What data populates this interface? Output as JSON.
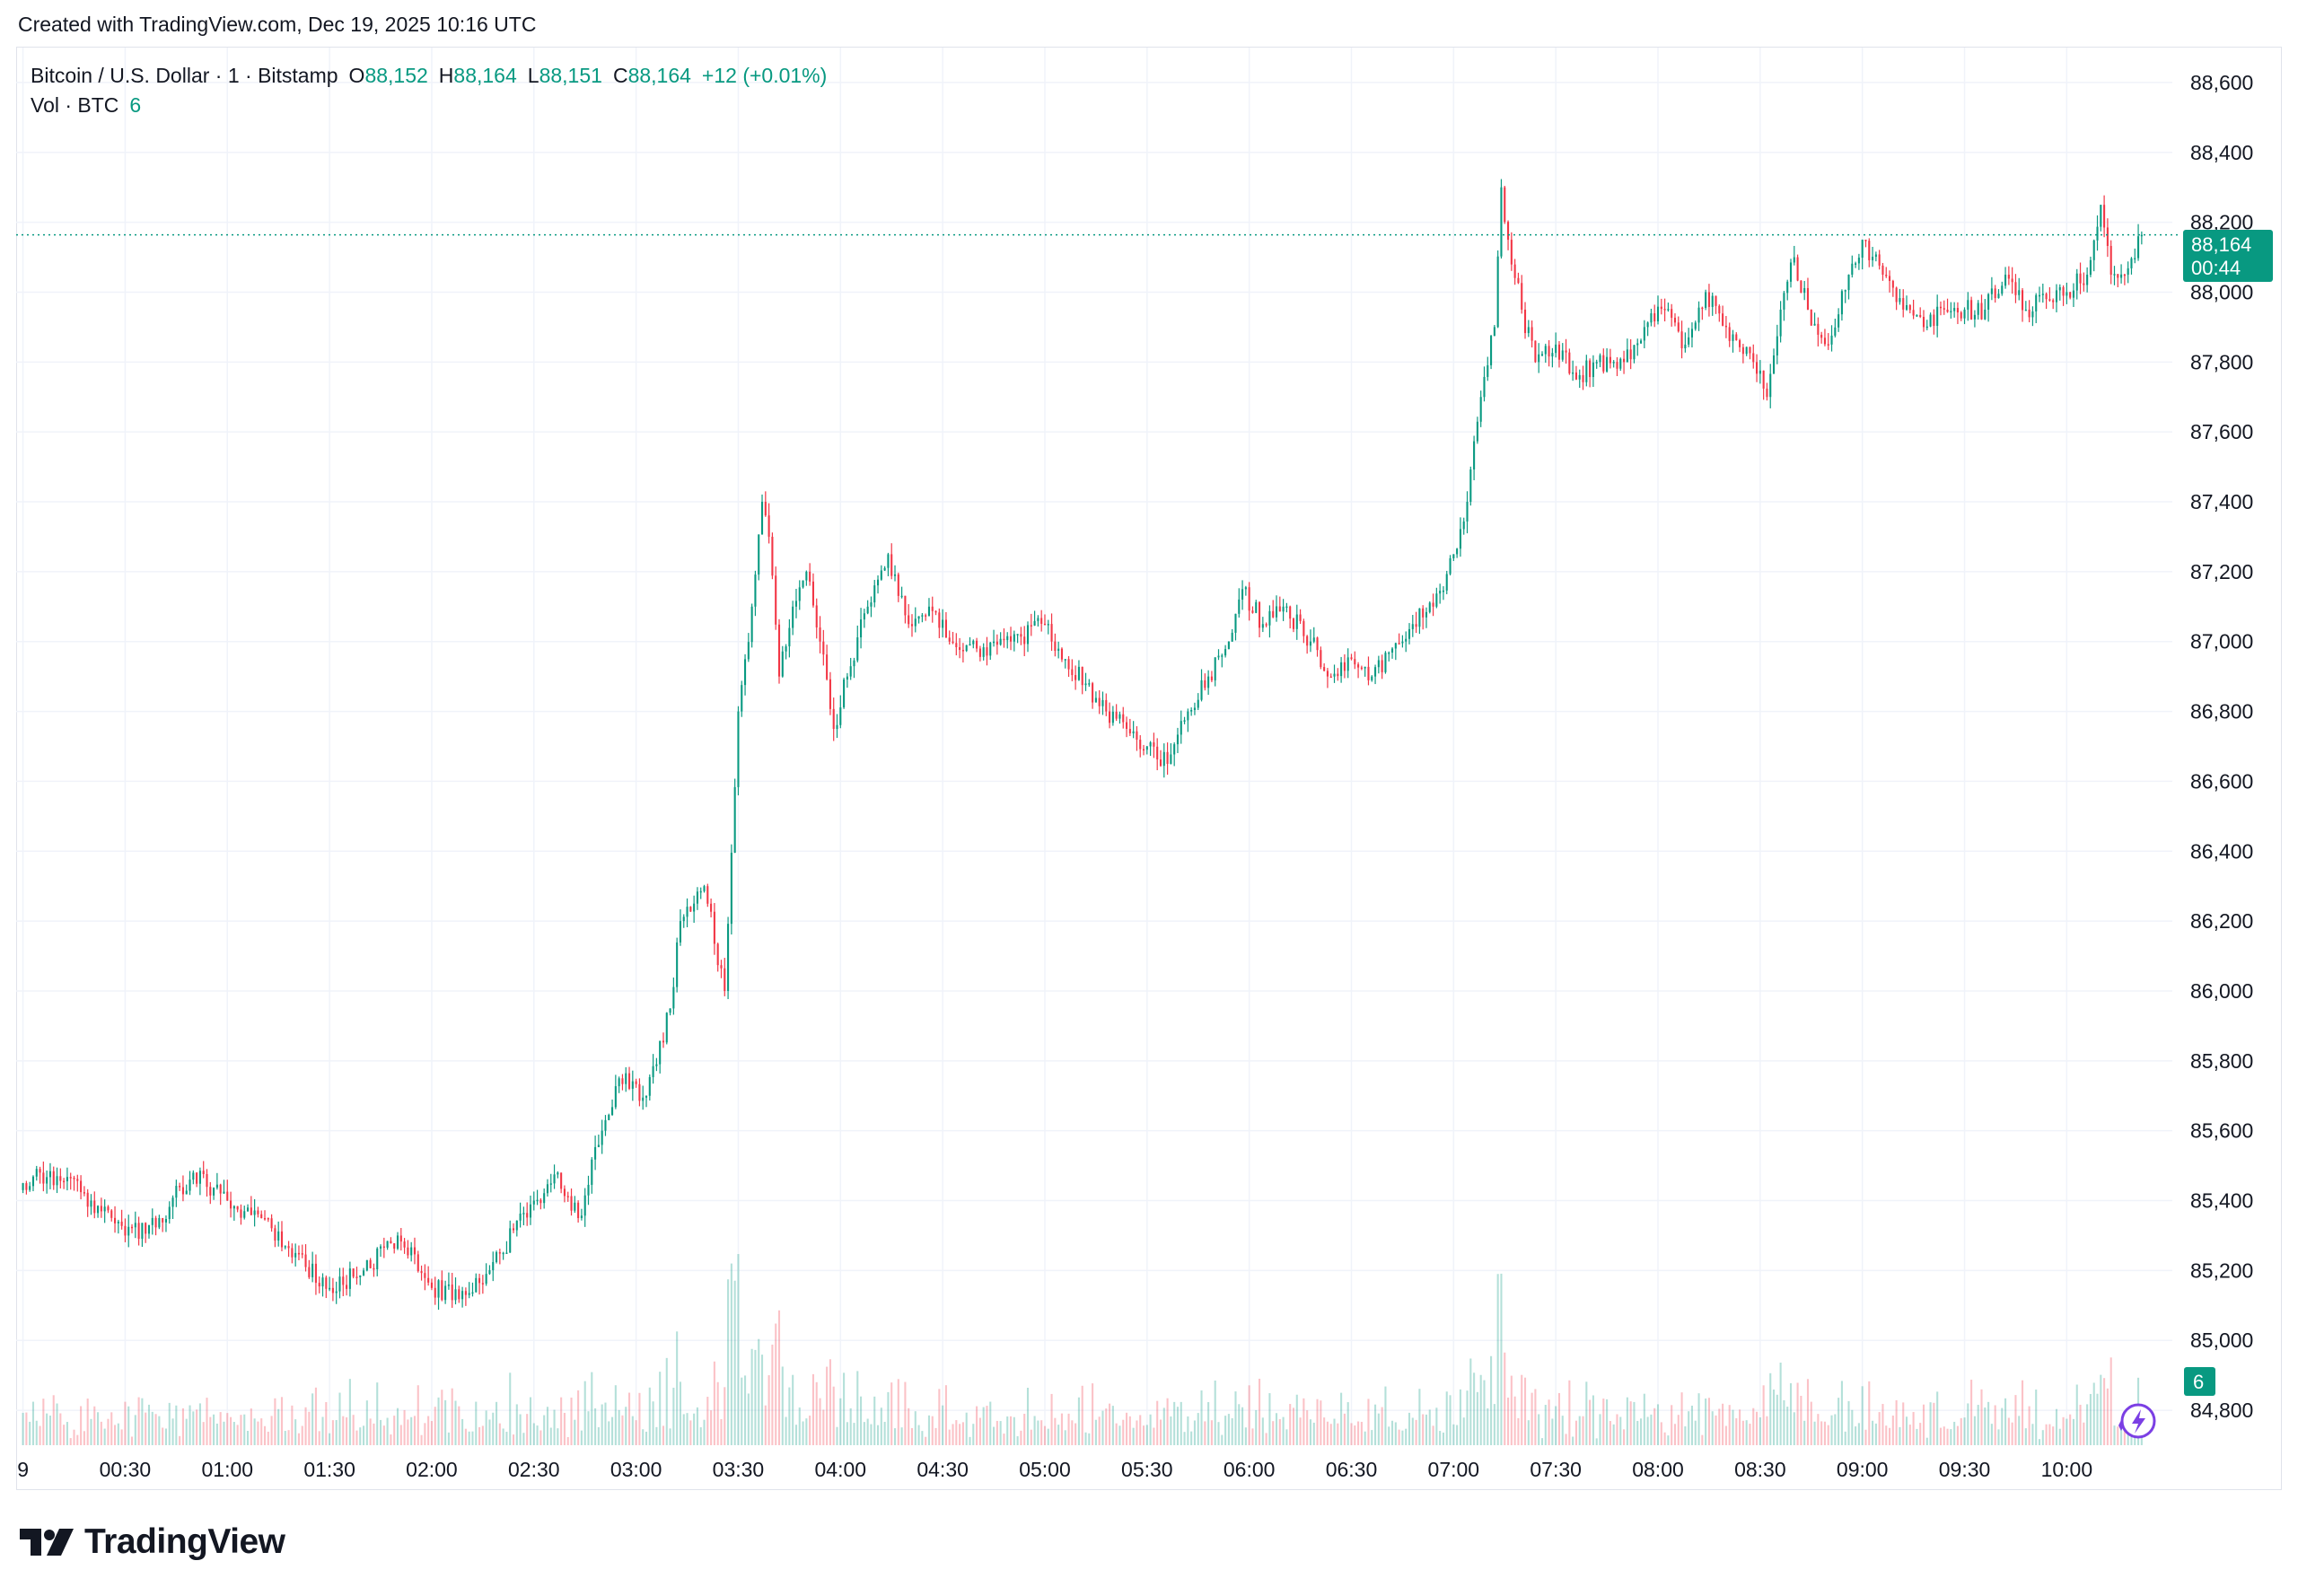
{
  "header": {
    "created_text": "Created with TradingView.com, Dec 19, 2025 10:16 UTC"
  },
  "legend": {
    "symbol": "Bitcoin / U.S. Dollar · 1 · Bitstamp",
    "o_label": "O",
    "o_value": "88,152",
    "h_label": "H",
    "h_value": "88,164",
    "l_label": "L",
    "l_value": "88,151",
    "c_label": "C",
    "c_value": "88,164",
    "change": "+12 (+0.01%)",
    "vol_label": "Vol · BTC",
    "vol_value": "6"
  },
  "price_badge": {
    "price": "88,164",
    "countdown": "00:44"
  },
  "volume_badge": "6",
  "footer": {
    "brand": "TradingView"
  },
  "colors": {
    "up": "#089981",
    "down": "#f23645",
    "grid": "#f0f3fa",
    "accent": "#089981"
  },
  "icons": {
    "logo": "tradingview-logo-icon",
    "flash": "lightning-icon"
  },
  "chart_data": {
    "type": "candlestick",
    "symbol": "Bitcoin / U.S. Dollar · 1 · Bitstamp",
    "ylim": [
      84700,
      88700
    ],
    "yticks": [
      84800,
      85000,
      85200,
      85400,
      85600,
      85800,
      86000,
      86200,
      86400,
      86600,
      86800,
      87000,
      87200,
      87400,
      87600,
      87800,
      88000,
      88200,
      88400,
      88600
    ],
    "ytick_labels": [
      "84,800",
      "85,000",
      "85,200",
      "85,400",
      "85,600",
      "85,800",
      "86,000",
      "86,200",
      "86,400",
      "86,600",
      "86,800",
      "87,000",
      "87,200",
      "87,400",
      "87,600",
      "87,800",
      "88,000",
      "88,200",
      "88,400",
      "88,600"
    ],
    "xlim": [
      -2,
      631
    ],
    "xticks": [
      0,
      30,
      60,
      90,
      120,
      150,
      180,
      210,
      240,
      270,
      300,
      330,
      360,
      390,
      420,
      450,
      480,
      510,
      540,
      570,
      600
    ],
    "xtick_labels": [
      "9",
      "00:30",
      "01:00",
      "01:30",
      "02:00",
      "02:30",
      "03:00",
      "03:30",
      "04:00",
      "04:30",
      "05:00",
      "05:30",
      "06:00",
      "06:30",
      "07:00",
      "07:30",
      "08:00",
      "08:30",
      "09:00",
      "09:30",
      "10:00"
    ],
    "last_price": 88164,
    "anchors": [
      [
        0,
        85450
      ],
      [
        5,
        85480
      ],
      [
        10,
        85470
      ],
      [
        20,
        85400
      ],
      [
        30,
        85300
      ],
      [
        40,
        85350
      ],
      [
        50,
        85480
      ],
      [
        60,
        85400
      ],
      [
        70,
        85350
      ],
      [
        80,
        85250
      ],
      [
        90,
        85150
      ],
      [
        100,
        85200
      ],
      [
        110,
        85300
      ],
      [
        120,
        85150
      ],
      [
        130,
        85130
      ],
      [
        140,
        85250
      ],
      [
        150,
        85400
      ],
      [
        157,
        85480
      ],
      [
        163,
        85350
      ],
      [
        170,
        85600
      ],
      [
        175,
        85750
      ],
      [
        183,
        85700
      ],
      [
        190,
        85950
      ],
      [
        193,
        86200
      ],
      [
        197,
        86250
      ],
      [
        200,
        86300
      ],
      [
        206,
        86000
      ],
      [
        210,
        86800
      ],
      [
        214,
        87100
      ],
      [
        217,
        87400
      ],
      [
        219,
        87300
      ],
      [
        222,
        86900
      ],
      [
        226,
        87100
      ],
      [
        230,
        87200
      ],
      [
        234,
        87000
      ],
      [
        238,
        86750
      ],
      [
        242,
        86900
      ],
      [
        248,
        87100
      ],
      [
        254,
        87250
      ],
      [
        260,
        87050
      ],
      [
        266,
        87100
      ],
      [
        272,
        87000
      ],
      [
        280,
        86980
      ],
      [
        290,
        87000
      ],
      [
        300,
        87050
      ],
      [
        306,
        86950
      ],
      [
        312,
        86880
      ],
      [
        318,
        86800
      ],
      [
        324,
        86750
      ],
      [
        330,
        86700
      ],
      [
        336,
        86650
      ],
      [
        342,
        86800
      ],
      [
        348,
        86900
      ],
      [
        354,
        87000
      ],
      [
        358,
        87150
      ],
      [
        364,
        87050
      ],
      [
        370,
        87100
      ],
      [
        378,
        87000
      ],
      [
        384,
        86900
      ],
      [
        390,
        86950
      ],
      [
        396,
        86900
      ],
      [
        402,
        86980
      ],
      [
        408,
        87050
      ],
      [
        414,
        87100
      ],
      [
        420,
        87250
      ],
      [
        424,
        87400
      ],
      [
        428,
        87700
      ],
      [
        432,
        87900
      ],
      [
        434,
        88300
      ],
      [
        436,
        88150
      ],
      [
        440,
        87950
      ],
      [
        444,
        87800
      ],
      [
        450,
        87850
      ],
      [
        456,
        87750
      ],
      [
        462,
        87800
      ],
      [
        470,
        87800
      ],
      [
        476,
        87900
      ],
      [
        482,
        87950
      ],
      [
        488,
        87850
      ],
      [
        494,
        88000
      ],
      [
        500,
        87900
      ],
      [
        508,
        87800
      ],
      [
        512,
        87700
      ],
      [
        516,
        87950
      ],
      [
        520,
        88100
      ],
      [
        524,
        87950
      ],
      [
        530,
        87850
      ],
      [
        536,
        88050
      ],
      [
        540,
        88150
      ],
      [
        546,
        88050
      ],
      [
        552,
        87950
      ],
      [
        558,
        87900
      ],
      [
        564,
        87950
      ],
      [
        570,
        87950
      ],
      [
        576,
        87950
      ],
      [
        582,
        88050
      ],
      [
        588,
        87950
      ],
      [
        594,
        87980
      ],
      [
        600,
        88000
      ],
      [
        606,
        88050
      ],
      [
        610,
        88250
      ],
      [
        613,
        88050
      ],
      [
        617,
        88050
      ],
      [
        622,
        88164
      ]
    ]
  }
}
